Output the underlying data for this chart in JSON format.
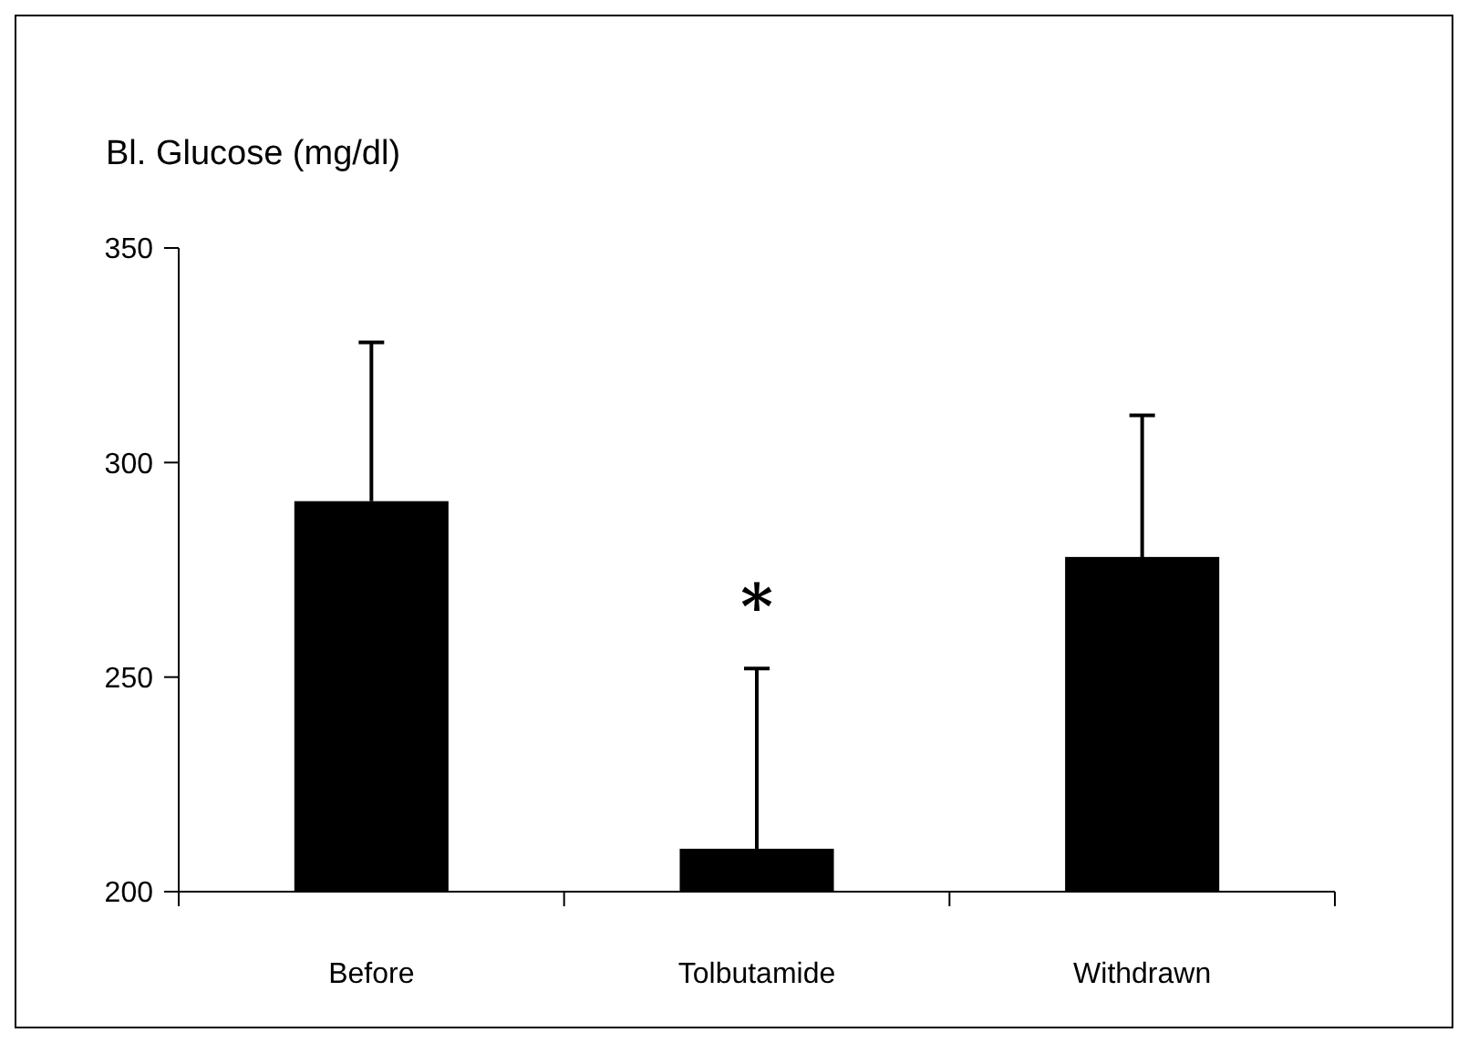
{
  "chart_data": {
    "type": "bar",
    "ylabel": "Bl. Glucose (mg/dl)",
    "categories": [
      "Before",
      "Tolbutamide",
      "Withdrawn"
    ],
    "values": [
      291,
      210,
      278
    ],
    "errors": [
      [
        291,
        328
      ],
      [
        210,
        252
      ],
      [
        278,
        311
      ]
    ],
    "color": "#000000",
    "ylim": [
      200,
      350
    ],
    "yticks": [
      200,
      250,
      300,
      350
    ],
    "grid": false,
    "legend": false,
    "annotations": [
      "*"
    ]
  }
}
